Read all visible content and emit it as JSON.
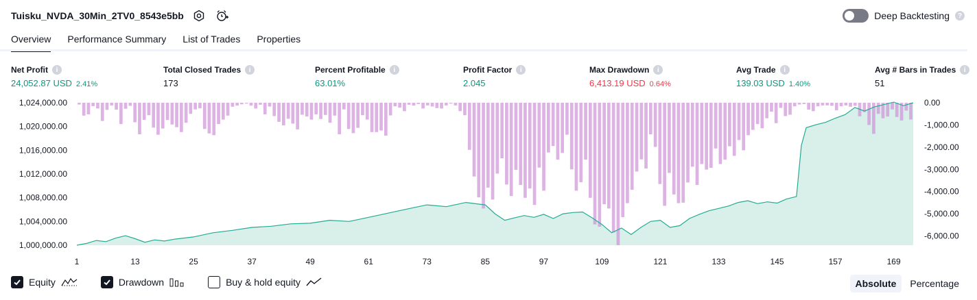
{
  "header": {
    "strategy_name": "Tuisku_NVDA_30Min_2TV0_8543e5bb",
    "settings_icon": "gear-icon",
    "alert_icon": "add-alert-icon",
    "deep_backtesting_label": "Deep Backtesting",
    "deep_backtesting_enabled": false
  },
  "tabs": [
    {
      "label": "Overview",
      "active": true
    },
    {
      "label": "Performance Summary",
      "active": false
    },
    {
      "label": "List of Trades",
      "active": false
    },
    {
      "label": "Properties",
      "active": false
    }
  ],
  "metrics": [
    {
      "label": "Net Profit",
      "value": "24,052.87 USD",
      "percent": "2.41%",
      "tone": "positive"
    },
    {
      "label": "Total Closed Trades",
      "value": "173",
      "percent": "",
      "tone": "neutral"
    },
    {
      "label": "Percent Profitable",
      "value": "63.01%",
      "percent": "",
      "tone": "positive"
    },
    {
      "label": "Profit Factor",
      "value": "2.045",
      "percent": "",
      "tone": "positive"
    },
    {
      "label": "Max Drawdown",
      "value": "6,413.19 USD",
      "percent": "0.64%",
      "tone": "negative"
    },
    {
      "label": "Avg Trade",
      "value": "139.03 USD",
      "percent": "1.40%",
      "tone": "positive"
    },
    {
      "label": "Avg # Bars in Trades",
      "value": "51",
      "percent": "",
      "tone": "neutral"
    }
  ],
  "legend": {
    "equity_label": "Equity",
    "equity_checked": true,
    "drawdown_label": "Drawdown",
    "drawdown_checked": true,
    "buyhold_label": "Buy & hold equity",
    "buyhold_checked": false
  },
  "modes": {
    "absolute": "Absolute",
    "percentage": "Percentage",
    "selected": "absolute"
  },
  "colors": {
    "equity_line": "#22ab94",
    "equity_fill": "#d5ede7",
    "drawdown_bar": "#ce93d8",
    "positive": "#089981",
    "negative": "#f23645"
  },
  "chart_data": {
    "type": "area",
    "x_ticks": [
      "1",
      "13",
      "25",
      "37",
      "49",
      "61",
      "73",
      "85",
      "97",
      "109",
      "121",
      "133",
      "145",
      "157",
      "169"
    ],
    "left_axis": {
      "ticks": [
        "1,000,000.00",
        "1,004,000.00",
        "1,008,000.00",
        "1,012,000.00",
        "1,016,000.00",
        "1,020,000.00",
        "1,024,000.00"
      ],
      "ylim": [
        1000000,
        1024000
      ]
    },
    "right_axis": {
      "ticks": [
        "0.00",
        "-1,000.00",
        "-2,000.00",
        "-3,000.00",
        "-4,000.00",
        "-5,000.00",
        "-6,000.00"
      ],
      "ylim": [
        -6413.19,
        0
      ]
    },
    "x_range": [
      1,
      173
    ],
    "grid": false,
    "series": [
      {
        "name": "Equity",
        "axis": "left",
        "x": [
          1,
          3,
          5,
          7,
          9,
          11,
          13,
          15,
          17,
          19,
          21,
          25,
          29,
          33,
          37,
          41,
          45,
          49,
          53,
          57,
          61,
          65,
          69,
          73,
          77,
          81,
          85,
          87,
          89,
          91,
          93,
          95,
          97,
          99,
          101,
          103,
          105,
          107,
          109,
          111,
          113,
          115,
          117,
          119,
          121,
          123,
          125,
          127,
          129,
          131,
          133,
          135,
          137,
          139,
          141,
          143,
          145,
          147,
          149,
          150,
          151,
          153,
          155,
          157,
          159,
          161,
          163,
          165,
          167,
          169,
          171,
          173
        ],
        "values": [
          1000000,
          1000300,
          1000800,
          1000600,
          1001200,
          1001600,
          1001100,
          1000500,
          1000900,
          1000700,
          1001000,
          1001400,
          1002100,
          1002500,
          1003000,
          1003200,
          1003600,
          1003700,
          1004200,
          1004000,
          1004700,
          1005400,
          1006100,
          1006800,
          1006500,
          1007200,
          1006800,
          1005300,
          1004200,
          1004600,
          1005000,
          1004700,
          1005200,
          1004500,
          1005300,
          1005500,
          1005600,
          1004600,
          1003500,
          1002100,
          1002900,
          1001800,
          1003000,
          1004000,
          1004200,
          1003000,
          1003300,
          1004500,
          1005200,
          1005800,
          1006200,
          1006600,
          1007200,
          1007500,
          1007000,
          1007300,
          1007100,
          1007800,
          1008200,
          1016800,
          1019800,
          1020300,
          1020700,
          1021400,
          1022000,
          1023200,
          1022600,
          1023300,
          1023700,
          1024100,
          1023500,
          1024000
        ]
      },
      {
        "name": "Drawdown",
        "axis": "right",
        "values": [
          -80,
          -580,
          -520,
          -150,
          -260,
          -820,
          -320,
          -120,
          -310,
          -960,
          -270,
          -140,
          -880,
          -1420,
          -770,
          -560,
          -1120,
          -1440,
          -1160,
          -780,
          -980,
          -1100,
          -1320,
          -900,
          -500,
          -300,
          -250,
          -1180,
          -1380,
          -1460,
          -960,
          -760,
          -580,
          -180,
          -130,
          -70,
          -40,
          -130,
          -260,
          -90,
          -520,
          -170,
          -600,
          -860,
          -1020,
          -720,
          -940,
          -1200,
          -540,
          -620,
          -760,
          -520,
          -730,
          -550,
          -900,
          -580,
          -1420,
          -300,
          -1180,
          -1370,
          -1130,
          -560,
          -760,
          -1320,
          -1320,
          -1250,
          -1480,
          -570,
          -160,
          -220,
          -380,
          -90,
          -130,
          -60,
          -260,
          -120,
          -170,
          -240,
          -260,
          -120,
          -40,
          -120,
          -380,
          -560,
          -2120,
          -3320,
          -4260,
          -4760,
          -3820,
          -4360,
          -3190,
          -2500,
          -3680,
          -4200,
          -3020,
          -3700,
          -4280,
          -3860,
          -4600,
          -2920,
          -3960,
          -2240,
          -1950,
          -2560,
          -2260,
          -1440,
          -3000,
          -3960,
          -3580,
          -2560,
          -4280,
          -5480,
          -5580,
          -4570,
          -4760,
          -5840,
          -6413,
          -5150,
          -4520,
          -3920,
          -3100,
          -2550,
          -2960,
          -1420,
          -1990,
          -3660,
          -4640,
          -3160,
          -4130,
          -4520,
          -4500,
          -3590,
          -2880,
          -3700,
          -2760,
          -3010,
          -2930,
          -2060,
          -2760,
          -2560,
          -1960,
          -2390,
          -1680,
          -2140,
          -1460,
          -1220,
          -960,
          -1150,
          -700,
          -400,
          -920,
          -230,
          -600,
          -540,
          -160,
          -80,
          -60,
          -310,
          -380,
          -160,
          -120,
          -120,
          -140,
          -340,
          -160,
          -120,
          -180,
          -140,
          -610,
          -420,
          -1000,
          -1400,
          -500,
          -700,
          -620,
          -300,
          -640,
          -800,
          -350,
          -760
        ]
      }
    ]
  }
}
